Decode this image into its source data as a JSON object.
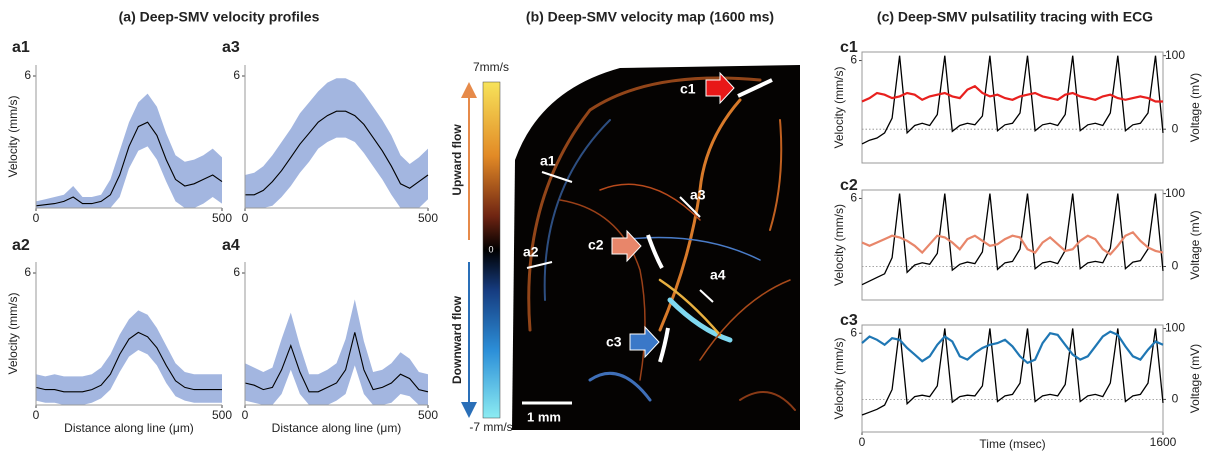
{
  "titles": [
    "(a) Deep-SMV velocity profiles",
    "(b) Deep-SMV velocity map (1600 ms)",
    "(c) Deep-SMV pulsatility tracing with ECG"
  ],
  "map": {
    "colorbar_max": "7mm/s",
    "colorbar_mid": "0",
    "colorbar_min": "-7 mm/s",
    "upward": "Upward flow",
    "downward": "Downward flow",
    "scale": "1 mm",
    "labels": [
      "a1",
      "a2",
      "a3",
      "a4",
      "c1",
      "c2",
      "c3"
    ]
  },
  "chart_data": [
    {
      "type": "band-line",
      "label": "a1",
      "ylabel": "Velocity (mm/s)",
      "color": "#000000",
      "band_color": "#a3b6e0",
      "x": [
        0,
        25,
        50,
        75,
        100,
        125,
        150,
        175,
        200,
        225,
        250,
        275,
        300,
        325,
        350,
        375,
        400,
        425,
        450,
        475,
        500
      ],
      "values": [
        0.1,
        0.15,
        0.2,
        0.3,
        0.5,
        0.2,
        0.2,
        0.3,
        0.6,
        1.5,
        2.8,
        3.7,
        3.9,
        3.3,
        2.2,
        1.3,
        1.0,
        1.1,
        1.3,
        1.5,
        1.2
      ],
      "lower": [
        0,
        0,
        0,
        0,
        0,
        0,
        0,
        0,
        0,
        0.5,
        1.8,
        2.6,
        2.8,
        2.2,
        1.2,
        0.3,
        0,
        0,
        0.2,
        0.5,
        0.2
      ],
      "upper": [
        0.3,
        0.4,
        0.5,
        0.6,
        1.0,
        0.5,
        0.5,
        0.6,
        1.3,
        2.6,
        3.9,
        4.8,
        5.2,
        4.6,
        3.4,
        2.4,
        2.1,
        2.2,
        2.4,
        2.7,
        2.3
      ],
      "xlim": [
        0,
        500
      ],
      "ylim": [
        0,
        6.5
      ],
      "xticks": [
        0,
        500
      ],
      "yticks": [
        6
      ]
    },
    {
      "type": "band-line",
      "label": "a3",
      "color": "#000000",
      "band_color": "#a3b6e0",
      "x": [
        0,
        25,
        50,
        75,
        100,
        125,
        150,
        175,
        200,
        225,
        250,
        275,
        300,
        325,
        350,
        375,
        400,
        425,
        450,
        475,
        500
      ],
      "values": [
        0.6,
        0.6,
        0.8,
        1.2,
        1.7,
        2.3,
        2.9,
        3.4,
        3.9,
        4.2,
        4.4,
        4.4,
        4.2,
        3.8,
        3.2,
        2.6,
        1.9,
        1.1,
        0.9,
        1.2,
        1.5
      ],
      "lower": [
        0,
        0,
        0,
        0.1,
        0.5,
        1.0,
        1.6,
        2.1,
        2.7,
        3.0,
        3.2,
        3.2,
        3.0,
        2.5,
        1.9,
        1.3,
        0.6,
        0,
        0,
        0,
        0.4
      ],
      "upper": [
        1.5,
        1.6,
        1.9,
        2.4,
        3.0,
        3.6,
        4.3,
        4.8,
        5.3,
        5.7,
        5.9,
        5.9,
        5.7,
        5.2,
        4.6,
        4.0,
        3.3,
        2.4,
        2.0,
        2.3,
        2.7
      ],
      "xlim": [
        0,
        500
      ],
      "ylim": [
        0,
        6.5
      ],
      "xticks": [
        0,
        500
      ],
      "yticks": [
        6
      ]
    },
    {
      "type": "band-line",
      "label": "a2",
      "ylabel": "Velocity (mm/s)",
      "xlabel": "Distance along line (μm)",
      "color": "#000000",
      "band_color": "#a3b6e0",
      "x": [
        0,
        25,
        50,
        75,
        100,
        125,
        150,
        175,
        200,
        225,
        250,
        275,
        300,
        325,
        350,
        375,
        400,
        425,
        450,
        475,
        500
      ],
      "values": [
        0.8,
        0.7,
        0.7,
        0.6,
        0.6,
        0.6,
        0.7,
        0.9,
        1.4,
        2.3,
        3.0,
        3.3,
        3.1,
        2.6,
        1.8,
        1.1,
        0.8,
        0.7,
        0.7,
        0.7,
        0.7
      ],
      "lower": [
        0.2,
        0.1,
        0.1,
        0,
        0,
        0,
        0.1,
        0.3,
        0.7,
        1.5,
        2.2,
        2.5,
        2.3,
        1.8,
        1.0,
        0.4,
        0.2,
        0.1,
        0.1,
        0.1,
        0.1
      ],
      "upper": [
        1.4,
        1.3,
        1.4,
        1.3,
        1.3,
        1.3,
        1.4,
        1.7,
        2.3,
        3.2,
        3.9,
        4.3,
        4.1,
        3.5,
        2.7,
        1.9,
        1.5,
        1.4,
        1.4,
        1.4,
        1.4
      ],
      "xlim": [
        0,
        500
      ],
      "ylim": [
        0,
        6.5
      ],
      "xticks": [
        0,
        500
      ],
      "yticks": [
        6
      ]
    },
    {
      "type": "band-line",
      "label": "a4",
      "xlabel": "Distance along line (μm)",
      "color": "#000000",
      "band_color": "#a3b6e0",
      "x": [
        0,
        25,
        50,
        75,
        100,
        125,
        150,
        175,
        200,
        225,
        250,
        275,
        300,
        325,
        350,
        375,
        400,
        425,
        450,
        475,
        500
      ],
      "values": [
        1.0,
        0.9,
        0.7,
        0.8,
        1.6,
        2.7,
        1.5,
        0.6,
        0.6,
        0.8,
        1.0,
        1.6,
        3.3,
        1.6,
        0.7,
        0.8,
        1.0,
        1.4,
        1.2,
        0.7,
        0.6
      ],
      "lower": [
        0.2,
        0.1,
        0,
        0,
        0.5,
        1.6,
        0.5,
        0,
        0,
        0,
        0.2,
        0.5,
        1.8,
        0.5,
        0,
        0,
        0.1,
        0.5,
        0.4,
        0,
        0
      ],
      "upper": [
        1.9,
        1.7,
        1.5,
        1.7,
        3.0,
        4.2,
        2.7,
        1.4,
        1.4,
        1.6,
        1.9,
        3.0,
        4.8,
        2.9,
        1.5,
        1.6,
        1.9,
        2.4,
        2.1,
        1.5,
        1.4
      ],
      "xlim": [
        0,
        500
      ],
      "ylim": [
        0,
        6.5
      ],
      "xticks": [
        0,
        500
      ],
      "yticks": [
        6
      ]
    },
    {
      "type": "line",
      "label": "c1",
      "ylabel": "Velocity (mm/s)",
      "y2label": "Voltage (mV)",
      "x": [
        0,
        40,
        80,
        120,
        160,
        200,
        240,
        280,
        320,
        360,
        400,
        440,
        480,
        520,
        560,
        600,
        640,
        680,
        720,
        760,
        800,
        840,
        880,
        920,
        960,
        1000,
        1040,
        1080,
        1120,
        1160,
        1200,
        1240,
        1280,
        1320,
        1360,
        1400,
        1440,
        1480,
        1520,
        1560,
        1600
      ],
      "series": [
        {
          "color": "#000000",
          "axis": "y2",
          "values": [
            -20,
            -15,
            -12,
            -5,
            15,
            100,
            -5,
            5,
            8,
            5,
            20,
            100,
            -3,
            5,
            8,
            6,
            18,
            100,
            -2,
            6,
            8,
            22,
            100,
            -2,
            6,
            8,
            5,
            20,
            100,
            -2,
            6,
            8,
            5,
            22,
            100,
            -2,
            6,
            8,
            22,
            100,
            -5
          ]
        },
        {
          "color": "#e8201e",
          "values": [
            3.6,
            3.8,
            4.1,
            4.0,
            3.8,
            3.9,
            4.1,
            4.0,
            3.7,
            3.9,
            4.0,
            4.1,
            3.9,
            3.8,
            4.3,
            4.5,
            4.1,
            3.9,
            4.0,
            3.8,
            3.7,
            3.9,
            4.0,
            4.1,
            3.9,
            3.8,
            3.7,
            4.0,
            4.1,
            3.9,
            3.8,
            3.7,
            3.9,
            4.0,
            3.8,
            3.7,
            3.8,
            3.9,
            3.8,
            3.6,
            3.6
          ]
        }
      ],
      "xlim": [
        0,
        1600
      ],
      "ylim": [
        0,
        6.5
      ],
      "yticks": [
        6
      ],
      "y2lim": [
        -46,
        105
      ],
      "y2ticks": [
        0,
        100
      ],
      "zero_line": true
    },
    {
      "type": "line",
      "label": "c2",
      "ylabel": "Velocity (mm/s)",
      "y2label": "Voltage (mV)",
      "x": [
        0,
        40,
        80,
        120,
        160,
        200,
        240,
        280,
        320,
        360,
        400,
        440,
        480,
        520,
        560,
        600,
        640,
        680,
        720,
        760,
        800,
        840,
        880,
        920,
        960,
        1000,
        1040,
        1080,
        1120,
        1160,
        1200,
        1240,
        1280,
        1320,
        1360,
        1400,
        1440,
        1480,
        1520,
        1560,
        1600
      ],
      "series": [
        {
          "color": "#000000",
          "axis": "y2",
          "values": [
            -25,
            -20,
            -15,
            -10,
            12,
            100,
            -8,
            2,
            5,
            3,
            18,
            100,
            -5,
            3,
            6,
            4,
            20,
            100,
            -4,
            5,
            7,
            24,
            100,
            -3,
            5,
            7,
            4,
            22,
            100,
            -3,
            5,
            7,
            5,
            25,
            100,
            -3,
            6,
            8,
            24,
            100,
            -6
          ]
        },
        {
          "color": "#e8866a",
          "values": [
            3.4,
            3.2,
            3.4,
            3.6,
            3.8,
            3.7,
            3.5,
            3.2,
            2.8,
            3.3,
            3.8,
            3.7,
            3.4,
            3.0,
            3.6,
            3.8,
            3.5,
            3.2,
            3.3,
            3.6,
            3.8,
            3.7,
            3.0,
            2.8,
            3.4,
            3.7,
            3.3,
            2.9,
            3.0,
            3.5,
            3.8,
            3.6,
            3.0,
            2.7,
            3.2,
            3.8,
            4.0,
            3.5,
            3.1,
            2.9,
            2.8
          ]
        }
      ],
      "xlim": [
        0,
        1600
      ],
      "ylim": [
        0,
        6.5
      ],
      "yticks": [
        6
      ],
      "y2lim": [
        -46,
        105
      ],
      "y2ticks": [
        0,
        100
      ],
      "zero_line": true
    },
    {
      "type": "line",
      "label": "c3",
      "ylabel": "Velocity (mm/s)",
      "y2label": "Voltage (mV)",
      "xlabel": "Time (msec)",
      "x": [
        0,
        40,
        80,
        120,
        160,
        200,
        240,
        280,
        320,
        360,
        400,
        440,
        480,
        520,
        560,
        600,
        640,
        680,
        720,
        760,
        800,
        840,
        880,
        920,
        960,
        1000,
        1040,
        1080,
        1120,
        1160,
        1200,
        1240,
        1280,
        1320,
        1360,
        1400,
        1440,
        1480,
        1520,
        1560,
        1600
      ],
      "series": [
        {
          "color": "#000000",
          "axis": "y2",
          "values": [
            -22,
            -18,
            -14,
            -8,
            14,
            100,
            -6,
            4,
            6,
            4,
            19,
            100,
            -4,
            4,
            6,
            5,
            19,
            100,
            -3,
            5,
            7,
            23,
            100,
            -3,
            5,
            7,
            5,
            21,
            100,
            -3,
            5,
            7,
            4,
            23,
            100,
            -3,
            5,
            7,
            23,
            100,
            -5
          ]
        },
        {
          "color": "#1f77b4",
          "values": [
            5.4,
            5.8,
            5.6,
            5.3,
            5.7,
            5.6,
            5.1,
            4.7,
            4.3,
            4.6,
            5.3,
            5.8,
            5.5,
            4.6,
            4.4,
            4.8,
            5.1,
            5.3,
            5.4,
            5.6,
            5.2,
            4.6,
            4.2,
            4.4,
            5.4,
            6.0,
            5.9,
            5.3,
            4.7,
            4.4,
            4.6,
            5.2,
            5.8,
            6.1,
            5.9,
            5.2,
            4.6,
            4.4,
            5.0,
            5.5,
            5.3
          ]
        }
      ],
      "xlim": [
        0,
        1600
      ],
      "ylim": [
        0,
        6.5
      ],
      "yticks": [
        6
      ],
      "y2lim": [
        -46,
        105
      ],
      "y2ticks": [
        0,
        100
      ],
      "xticks": [
        0,
        1600
      ],
      "zero_line": true
    }
  ]
}
